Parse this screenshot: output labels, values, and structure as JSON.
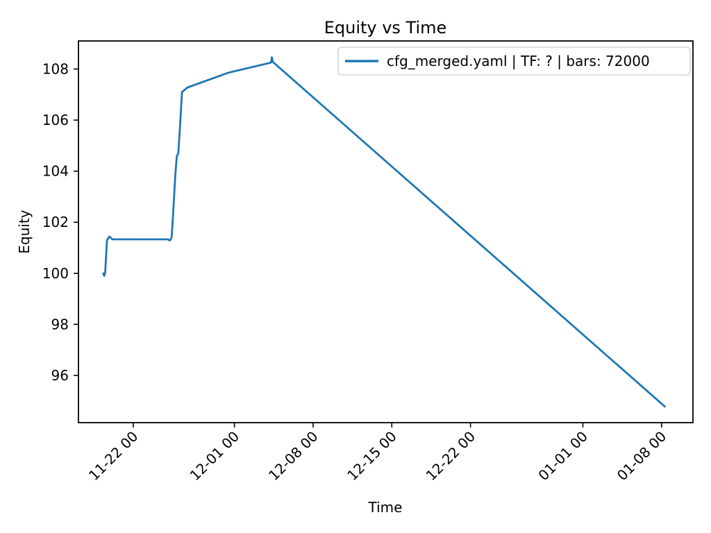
{
  "colors": {
    "line": "#1f77b4",
    "spine": "#000000",
    "text": "#000000",
    "legend_border": "#cccccc",
    "background": "#ffffff"
  },
  "chart_data": {
    "type": "line",
    "title": "Equity vs Time",
    "xlabel": "Time",
    "ylabel": "Equity",
    "grid": false,
    "legend_position": "upper right",
    "x_tick_rotation": 45,
    "x_tick_labels": [
      "11-22 00",
      "12-01 00",
      "12-08 00",
      "12-15 00",
      "12-22 00",
      "01-01 00",
      "01-08 00"
    ],
    "y_ticks": [
      96,
      98,
      100,
      102,
      104,
      106,
      108
    ],
    "xlim": [
      "11-17 03",
      "01-10 19"
    ],
    "ylim": [
      94.15,
      109.1
    ],
    "series": [
      {
        "name": "cfg_merged.yaml | TF: ? | bars: 72000",
        "color": "#1f77b4",
        "points": [
          [
            "11-19 08",
            100.0
          ],
          [
            "11-19 10",
            99.9
          ],
          [
            "11-19 12",
            100.0
          ],
          [
            "11-19 16",
            101.3
          ],
          [
            "11-19 21",
            101.44
          ],
          [
            "11-20 04",
            101.33
          ],
          [
            "11-25 02",
            101.33
          ],
          [
            "11-25 06",
            101.28
          ],
          [
            "11-25 10",
            101.4
          ],
          [
            "11-25 14",
            102.6
          ],
          [
            "11-25 18",
            103.9
          ],
          [
            "11-25 21",
            104.6
          ],
          [
            "11-26 00",
            104.68
          ],
          [
            "11-26 04",
            105.8
          ],
          [
            "11-26 08",
            107.1
          ],
          [
            "11-26 20",
            107.28
          ],
          [
            "11-30 12",
            107.86
          ],
          [
            "12-04 06",
            108.25
          ],
          [
            "12-04 08",
            108.46
          ],
          [
            "12-04 10",
            108.28
          ],
          [
            "01-08 07",
            94.78
          ]
        ]
      }
    ]
  }
}
